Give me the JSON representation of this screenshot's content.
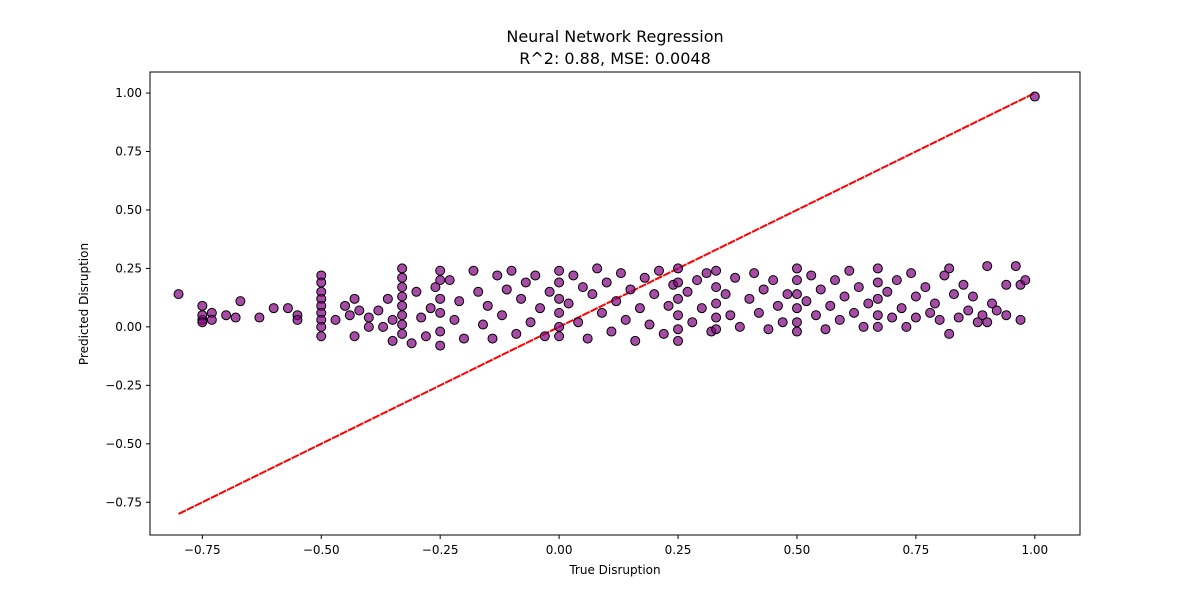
{
  "chart_data": {
    "type": "scatter",
    "title": "Neural Network Regression",
    "subtitle": "R^2: 0.88, MSE: 0.0048",
    "xlabel": "True Disruption",
    "ylabel": "Predicted Disruption",
    "xlim": [
      -0.86,
      1.095
    ],
    "ylim": [
      -0.89,
      1.09
    ],
    "grid": false,
    "x_ticks": [
      {
        "value": -0.75,
        "label": "−0.75"
      },
      {
        "value": -0.5,
        "label": "−0.50"
      },
      {
        "value": -0.25,
        "label": "−0.25"
      },
      {
        "value": 0.0,
        "label": "0.00"
      },
      {
        "value": 0.25,
        "label": "0.25"
      },
      {
        "value": 0.5,
        "label": "0.50"
      },
      {
        "value": 0.75,
        "label": "0.75"
      },
      {
        "value": 1.0,
        "label": "1.00"
      }
    ],
    "y_ticks": [
      {
        "value": -0.75,
        "label": "−0.75"
      },
      {
        "value": -0.5,
        "label": "−0.50"
      },
      {
        "value": -0.25,
        "label": "−0.25"
      },
      {
        "value": 0.0,
        "label": "0.00"
      },
      {
        "value": 0.25,
        "label": "0.25"
      },
      {
        "value": 0.5,
        "label": "0.50"
      },
      {
        "value": 0.75,
        "label": "0.75"
      },
      {
        "value": 1.0,
        "label": "1.00"
      }
    ],
    "reference_line": {
      "points": [
        [
          -0.8,
          -0.8
        ],
        [
          1.0,
          1.0
        ]
      ],
      "color": "#ff0000",
      "style": "dashed"
    },
    "series": [
      {
        "marker_color": "#800080",
        "edge_color": "#000000",
        "points": [
          [
            -0.8,
            0.14
          ],
          [
            -0.75,
            0.03
          ],
          [
            -0.75,
            0.05
          ],
          [
            -0.75,
            0.09
          ],
          [
            -0.75,
            0.02
          ],
          [
            -0.73,
            0.06
          ],
          [
            -0.73,
            0.03
          ],
          [
            -0.7,
            0.05
          ],
          [
            -0.68,
            0.04
          ],
          [
            -0.67,
            0.11
          ],
          [
            -0.63,
            0.04
          ],
          [
            -0.6,
            0.08
          ],
          [
            -0.57,
            0.08
          ],
          [
            -0.55,
            0.05
          ],
          [
            -0.55,
            0.03
          ],
          [
            -0.5,
            0.22
          ],
          [
            -0.5,
            0.19
          ],
          [
            -0.5,
            0.15
          ],
          [
            -0.5,
            0.12
          ],
          [
            -0.5,
            0.09
          ],
          [
            -0.5,
            0.06
          ],
          [
            -0.5,
            0.03
          ],
          [
            -0.5,
            0.0
          ],
          [
            -0.5,
            -0.04
          ],
          [
            -0.47,
            0.03
          ],
          [
            -0.45,
            0.09
          ],
          [
            -0.44,
            0.05
          ],
          [
            -0.43,
            0.12
          ],
          [
            -0.43,
            -0.04
          ],
          [
            -0.42,
            0.07
          ],
          [
            -0.4,
            0.04
          ],
          [
            -0.4,
            0.0
          ],
          [
            -0.38,
            0.07
          ],
          [
            -0.37,
            0.0
          ],
          [
            -0.36,
            0.12
          ],
          [
            -0.35,
            0.03
          ],
          [
            -0.35,
            -0.06
          ],
          [
            -0.33,
            0.25
          ],
          [
            -0.33,
            0.21
          ],
          [
            -0.33,
            0.17
          ],
          [
            -0.33,
            0.13
          ],
          [
            -0.33,
            0.09
          ],
          [
            -0.33,
            0.05
          ],
          [
            -0.33,
            0.01
          ],
          [
            -0.33,
            -0.03
          ],
          [
            -0.31,
            -0.07
          ],
          [
            -0.3,
            0.15
          ],
          [
            -0.29,
            0.04
          ],
          [
            -0.28,
            -0.04
          ],
          [
            -0.27,
            0.08
          ],
          [
            -0.26,
            0.17
          ],
          [
            -0.25,
            0.24
          ],
          [
            -0.25,
            0.2
          ],
          [
            -0.25,
            0.12
          ],
          [
            -0.25,
            0.06
          ],
          [
            -0.25,
            -0.02
          ],
          [
            -0.25,
            -0.08
          ],
          [
            -0.23,
            0.2
          ],
          [
            -0.22,
            0.03
          ],
          [
            -0.21,
            0.11
          ],
          [
            -0.2,
            -0.05
          ],
          [
            -0.18,
            0.24
          ],
          [
            -0.17,
            0.15
          ],
          [
            -0.16,
            0.01
          ],
          [
            -0.15,
            0.09
          ],
          [
            -0.14,
            -0.05
          ],
          [
            -0.13,
            0.22
          ],
          [
            -0.12,
            0.05
          ],
          [
            -0.11,
            0.16
          ],
          [
            -0.1,
            0.24
          ],
          [
            -0.09,
            -0.03
          ],
          [
            -0.08,
            0.12
          ],
          [
            -0.07,
            0.19
          ],
          [
            -0.06,
            0.02
          ],
          [
            -0.05,
            0.22
          ],
          [
            -0.04,
            0.08
          ],
          [
            -0.03,
            -0.04
          ],
          [
            -0.02,
            0.15
          ],
          [
            0.0,
            0.24
          ],
          [
            0.0,
            0.19
          ],
          [
            0.0,
            0.12
          ],
          [
            0.0,
            0.06
          ],
          [
            0.0,
            0.0
          ],
          [
            0.0,
            -0.04
          ],
          [
            0.02,
            0.1
          ],
          [
            0.03,
            0.22
          ],
          [
            0.04,
            0.02
          ],
          [
            0.05,
            0.17
          ],
          [
            0.06,
            -0.05
          ],
          [
            0.07,
            0.14
          ],
          [
            0.08,
            0.25
          ],
          [
            0.09,
            0.06
          ],
          [
            0.1,
            0.19
          ],
          [
            0.11,
            -0.02
          ],
          [
            0.12,
            0.11
          ],
          [
            0.13,
            0.23
          ],
          [
            0.14,
            0.03
          ],
          [
            0.15,
            0.16
          ],
          [
            0.16,
            -0.06
          ],
          [
            0.17,
            0.08
          ],
          [
            0.18,
            0.21
          ],
          [
            0.19,
            0.01
          ],
          [
            0.2,
            0.14
          ],
          [
            0.21,
            0.24
          ],
          [
            0.22,
            -0.03
          ],
          [
            0.23,
            0.09
          ],
          [
            0.24,
            0.18
          ],
          [
            0.25,
            0.25
          ],
          [
            0.25,
            0.19
          ],
          [
            0.25,
            0.12
          ],
          [
            0.25,
            0.05
          ],
          [
            0.25,
            -0.01
          ],
          [
            0.25,
            -0.06
          ],
          [
            0.27,
            0.15
          ],
          [
            0.28,
            0.02
          ],
          [
            0.29,
            0.2
          ],
          [
            0.3,
            0.08
          ],
          [
            0.31,
            0.23
          ],
          [
            0.32,
            -0.02
          ],
          [
            0.33,
            0.24
          ],
          [
            0.33,
            0.17
          ],
          [
            0.33,
            0.1
          ],
          [
            0.33,
            0.04
          ],
          [
            0.33,
            -0.01
          ],
          [
            0.35,
            0.14
          ],
          [
            0.36,
            0.05
          ],
          [
            0.37,
            0.21
          ],
          [
            0.38,
            0.0
          ],
          [
            0.4,
            0.12
          ],
          [
            0.41,
            0.23
          ],
          [
            0.42,
            0.06
          ],
          [
            0.43,
            0.16
          ],
          [
            0.44,
            -0.01
          ],
          [
            0.45,
            0.2
          ],
          [
            0.46,
            0.09
          ],
          [
            0.47,
            0.02
          ],
          [
            0.48,
            0.14
          ],
          [
            0.5,
            0.25
          ],
          [
            0.5,
            0.2
          ],
          [
            0.5,
            0.14
          ],
          [
            0.5,
            0.08
          ],
          [
            0.5,
            0.02
          ],
          [
            0.5,
            -0.02
          ],
          [
            0.52,
            0.11
          ],
          [
            0.53,
            0.22
          ],
          [
            0.54,
            0.05
          ],
          [
            0.55,
            0.16
          ],
          [
            0.56,
            -0.01
          ],
          [
            0.57,
            0.09
          ],
          [
            0.58,
            0.2
          ],
          [
            0.59,
            0.03
          ],
          [
            0.6,
            0.13
          ],
          [
            0.61,
            0.24
          ],
          [
            0.62,
            0.06
          ],
          [
            0.63,
            0.17
          ],
          [
            0.64,
            0.0
          ],
          [
            0.65,
            0.1
          ],
          [
            0.67,
            0.25
          ],
          [
            0.67,
            0.19
          ],
          [
            0.67,
            0.12
          ],
          [
            0.67,
            0.05
          ],
          [
            0.67,
            0.0
          ],
          [
            0.69,
            0.15
          ],
          [
            0.7,
            0.04
          ],
          [
            0.71,
            0.2
          ],
          [
            0.72,
            0.08
          ],
          [
            0.73,
            0.0
          ],
          [
            0.74,
            0.23
          ],
          [
            0.75,
            0.13
          ],
          [
            0.75,
            0.04
          ],
          [
            0.77,
            0.17
          ],
          [
            0.78,
            0.06
          ],
          [
            0.79,
            0.1
          ],
          [
            0.8,
            0.03
          ],
          [
            0.81,
            0.22
          ],
          [
            0.82,
            0.25
          ],
          [
            0.82,
            -0.03
          ],
          [
            0.83,
            0.14
          ],
          [
            0.84,
            0.04
          ],
          [
            0.85,
            0.18
          ],
          [
            0.86,
            0.07
          ],
          [
            0.87,
            0.13
          ],
          [
            0.88,
            0.02
          ],
          [
            0.89,
            0.05
          ],
          [
            0.9,
            0.26
          ],
          [
            0.9,
            0.02
          ],
          [
            0.91,
            0.1
          ],
          [
            0.92,
            0.07
          ],
          [
            0.94,
            0.18
          ],
          [
            0.94,
            0.05
          ],
          [
            0.96,
            0.26
          ],
          [
            0.97,
            0.18
          ],
          [
            0.97,
            0.03
          ],
          [
            0.98,
            0.2
          ],
          [
            1.0,
            0.985
          ]
        ]
      }
    ]
  }
}
